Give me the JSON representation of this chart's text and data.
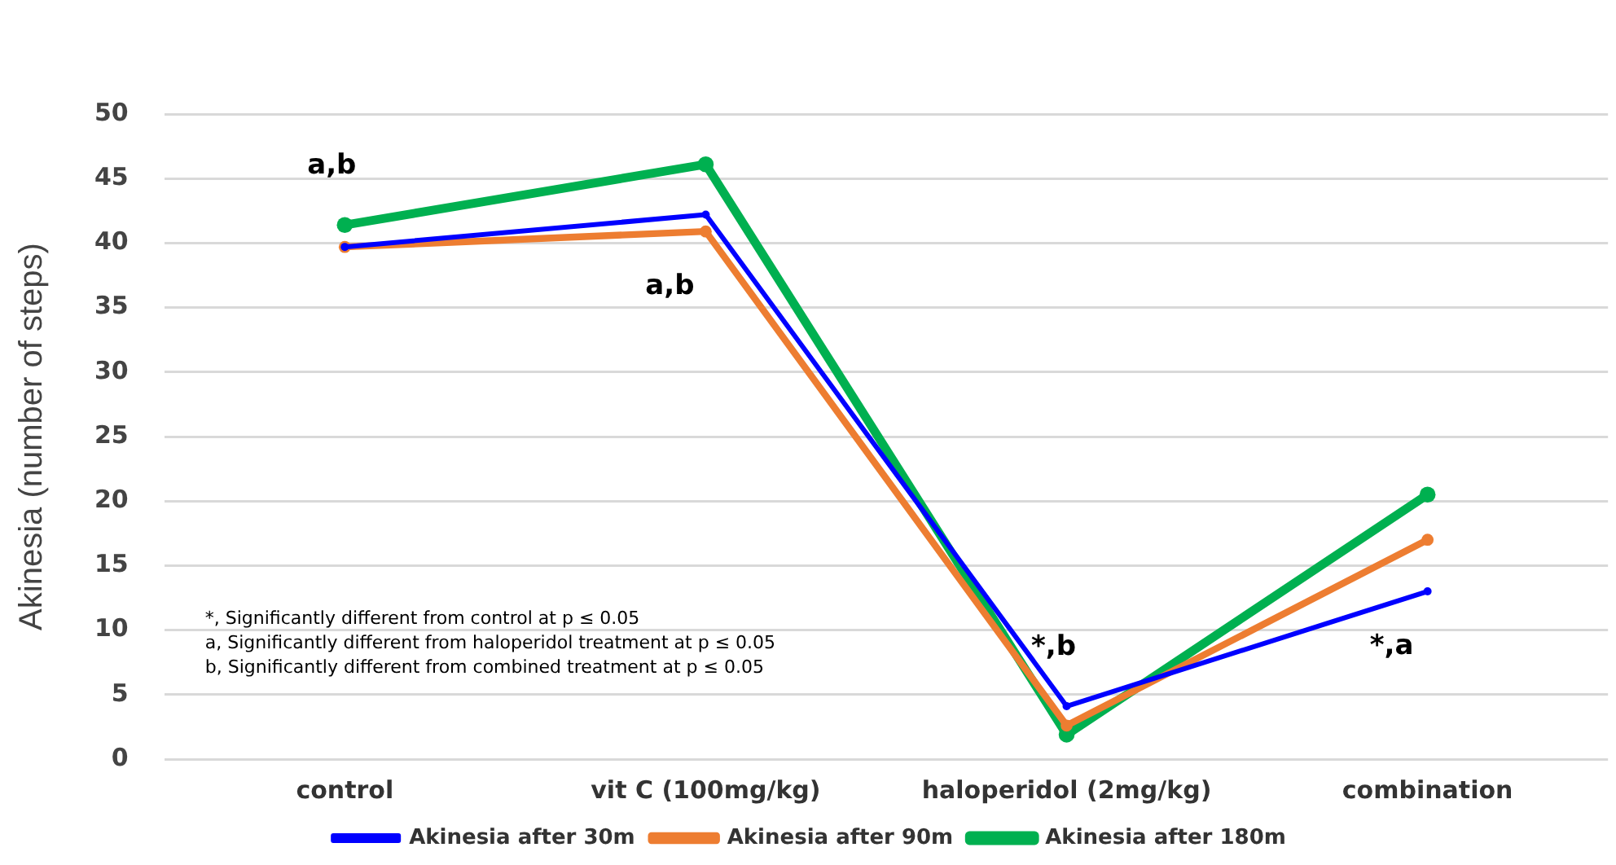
{
  "chart_data": {
    "type": "line",
    "ylabel": "Akinesia (number of steps)",
    "categories": [
      "control",
      "vit C (100mg/kg)",
      "haloperidol (2mg/kg)",
      "combination"
    ],
    "series": [
      {
        "name": "Akinesia after 30m",
        "color": "#0000ff",
        "values": [
          39.7,
          42.2,
          4.1,
          13.0
        ]
      },
      {
        "name": "Akinesia after 90m",
        "color": "#ed7d31",
        "values": [
          39.7,
          40.9,
          2.6,
          17.0
        ]
      },
      {
        "name": "Akinesia after 180m",
        "color": "#00b050",
        "values": [
          41.4,
          46.1,
          1.9,
          20.5
        ]
      }
    ],
    "ylim": [
      0,
      50
    ],
    "yticks": [
      0,
      5,
      10,
      15,
      20,
      25,
      30,
      35,
      40,
      45,
      50
    ],
    "grid": "y",
    "legend": "bottom",
    "marker": "circle",
    "line_style": "solid",
    "annotations": [
      "a,b",
      "a,b",
      "*,b",
      "*,a",
      "*, Significantly different from control at p ≤ 0.05",
      "a, Significantly different from haloperidol treatment at p ≤ 0.05",
      "b, Significantly different from combined treatment at p ≤ 0.05"
    ]
  }
}
